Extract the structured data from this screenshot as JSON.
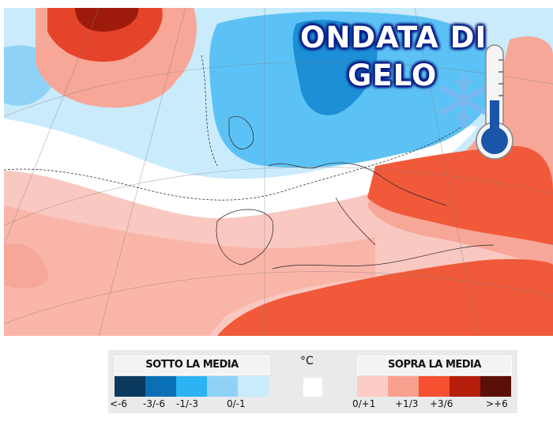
{
  "title": {
    "line1": "ONDATA DI",
    "line2": "GELO"
  },
  "icons": [
    "snowflake-icon",
    "thermometer-icon"
  ],
  "legend": {
    "below_title": "SOTTO LA MEDIA",
    "above_title": "SOPRA LA MEDIA",
    "unit": "°C",
    "below": [
      {
        "label": "<-6",
        "color": "#0b3a5e"
      },
      {
        "label": "-3/-6",
        "color": "#0a6fb5"
      },
      {
        "label": "-1/-3",
        "color": "#2bb3f4"
      },
      {
        "label": "0/-1",
        "color": "#8fd2f7"
      },
      {
        "label": "",
        "color": "#c9ebfb"
      }
    ],
    "zero_color": "#ffffff",
    "above": [
      {
        "label": "0/+1",
        "color": "#fccdc6"
      },
      {
        "label": "+1/3",
        "color": "#f9a08e"
      },
      {
        "label": "+3/6",
        "color": "#f55030"
      },
      {
        "label": ">+6",
        "color": "#b51e0b"
      },
      {
        "label": "",
        "color": "#5a0f08"
      }
    ]
  }
}
